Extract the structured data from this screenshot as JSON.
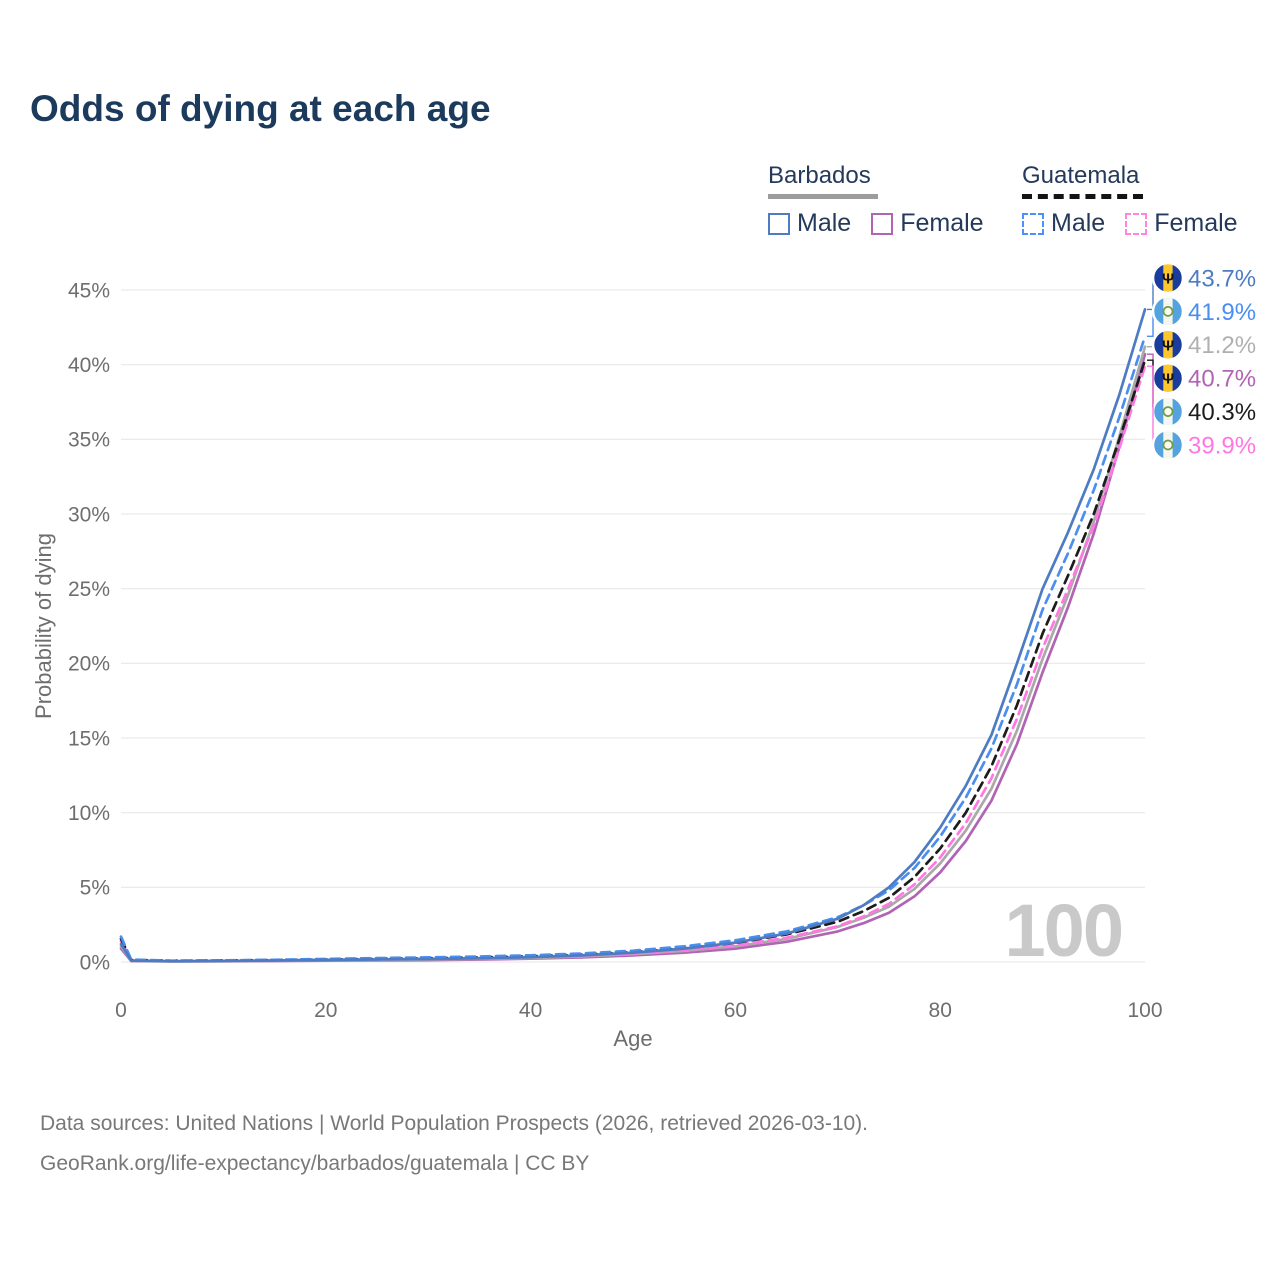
{
  "header": {
    "title": "Odds of dying at each age"
  },
  "legend": {
    "groups": [
      {
        "label": "Barbados",
        "line_style": "solid",
        "underline_color": "#9c9c9c",
        "items": [
          {
            "label": "Male",
            "color": "#4d7cc2"
          },
          {
            "label": "Female",
            "color": "#b163b4"
          }
        ]
      },
      {
        "label": "Guatemala",
        "line_style": "dashed",
        "underline_color": "#141414",
        "items": [
          {
            "label": "Male",
            "color": "#4a90ff"
          },
          {
            "label": "Female",
            "color": "#ff85e3"
          }
        ]
      }
    ]
  },
  "chart_data": {
    "type": "line",
    "title": "Odds of dying at each age",
    "xlabel": "Age",
    "ylabel": "Probability of dying",
    "xlim": [
      0,
      100
    ],
    "ylim": [
      0,
      45
    ],
    "x_ticks": [
      0,
      20,
      40,
      60,
      80,
      100
    ],
    "y_ticks": [
      0,
      5,
      10,
      15,
      20,
      25,
      30,
      35,
      40,
      45
    ],
    "y_tick_suffix": "%",
    "grid": true,
    "legend_position": "top-right",
    "watermark": "100",
    "x": [
      0,
      1,
      5,
      10,
      15,
      20,
      25,
      30,
      35,
      40,
      45,
      50,
      55,
      60,
      65,
      70,
      72.5,
      75,
      77.5,
      80,
      82.5,
      85,
      87.5,
      90,
      92.5,
      95,
      97.5,
      100
    ],
    "series": [
      {
        "name": "Barbados Male",
        "country": "Barbados",
        "sex": "Male",
        "color": "#4d7cc2",
        "label_color": "#4d7cc2",
        "line": "solid",
        "end_label": "43.7%",
        "end_value": 43.7,
        "values": [
          1.2,
          0.09,
          0.05,
          0.07,
          0.1,
          0.14,
          0.17,
          0.2,
          0.25,
          0.32,
          0.44,
          0.62,
          0.9,
          1.3,
          1.9,
          2.9,
          3.8,
          5.0,
          6.7,
          9.0,
          11.8,
          15.2,
          20.0,
          25.0,
          28.8,
          33.0,
          38.0,
          43.7
        ]
      },
      {
        "name": "Guatemala Male",
        "country": "Guatemala",
        "sex": "Male",
        "color": "#4a8ef0",
        "label_color": "#4a8ef0",
        "line": "dashed",
        "end_label": "41.9%",
        "end_value": 41.9,
        "values": [
          1.7,
          0.16,
          0.09,
          0.11,
          0.15,
          0.21,
          0.26,
          0.31,
          0.37,
          0.45,
          0.57,
          0.76,
          1.05,
          1.45,
          2.05,
          3.0,
          3.8,
          4.8,
          6.3,
          8.4,
          11.0,
          14.3,
          18.6,
          23.6,
          27.4,
          31.6,
          36.5,
          41.9
        ]
      },
      {
        "name": "Barbados Both Sexes",
        "country": "Barbados",
        "sex": "Both",
        "color": "#a9a9a9",
        "label_color": "#b0b0b0",
        "line": "solid",
        "end_label": "41.2%",
        "end_value": 41.2,
        "values": [
          1.05,
          0.08,
          0.05,
          0.06,
          0.09,
          0.12,
          0.14,
          0.17,
          0.21,
          0.27,
          0.37,
          0.52,
          0.74,
          1.05,
          1.55,
          2.35,
          2.95,
          3.7,
          4.9,
          6.6,
          8.8,
          11.6,
          15.5,
          20.3,
          24.6,
          29.5,
          35.2,
          41.2
        ]
      },
      {
        "name": "Barbados Female",
        "country": "Barbados",
        "sex": "Female",
        "color": "#b163b4",
        "label_color": "#b163b4",
        "line": "solid",
        "end_label": "40.7%",
        "end_value": 40.7,
        "values": [
          0.9,
          0.07,
          0.04,
          0.05,
          0.07,
          0.09,
          0.11,
          0.13,
          0.17,
          0.22,
          0.31,
          0.44,
          0.63,
          0.9,
          1.35,
          2.05,
          2.6,
          3.3,
          4.4,
          6.0,
          8.1,
          10.8,
          14.6,
          19.4,
          23.8,
          28.7,
          34.5,
          40.7
        ]
      },
      {
        "name": "Guatemala Both Sexes",
        "country": "Guatemala",
        "sex": "Both",
        "color": "#1c1c1c",
        "label_color": "#1c1c1c",
        "line": "dashed",
        "end_label": "40.3%",
        "end_value": 40.3,
        "values": [
          1.55,
          0.14,
          0.08,
          0.1,
          0.13,
          0.17,
          0.21,
          0.25,
          0.31,
          0.38,
          0.49,
          0.66,
          0.92,
          1.28,
          1.85,
          2.7,
          3.4,
          4.3,
          5.7,
          7.6,
          10.0,
          13.1,
          17.2,
          22.0,
          25.9,
          30.0,
          35.0,
          40.3
        ]
      },
      {
        "name": "Guatemala Female",
        "country": "Guatemala",
        "sex": "Female",
        "color": "#ff77e2",
        "label_color": "#ff77e2",
        "line": "dashed",
        "end_label": "39.9%",
        "end_value": 39.9,
        "values": [
          1.4,
          0.12,
          0.07,
          0.08,
          0.11,
          0.14,
          0.17,
          0.2,
          0.25,
          0.32,
          0.42,
          0.57,
          0.79,
          1.12,
          1.63,
          2.4,
          3.05,
          3.9,
          5.2,
          7.0,
          9.3,
          12.3,
          16.3,
          21.0,
          25.0,
          29.2,
          34.4,
          39.9
        ]
      }
    ]
  },
  "footer": {
    "line1": "Data sources: United Nations | World Population Prospects (2026, retrieved 2026-03-10).",
    "line2": "GeoRank.org/life-expectancy/barbados/guatemala | CC BY"
  }
}
